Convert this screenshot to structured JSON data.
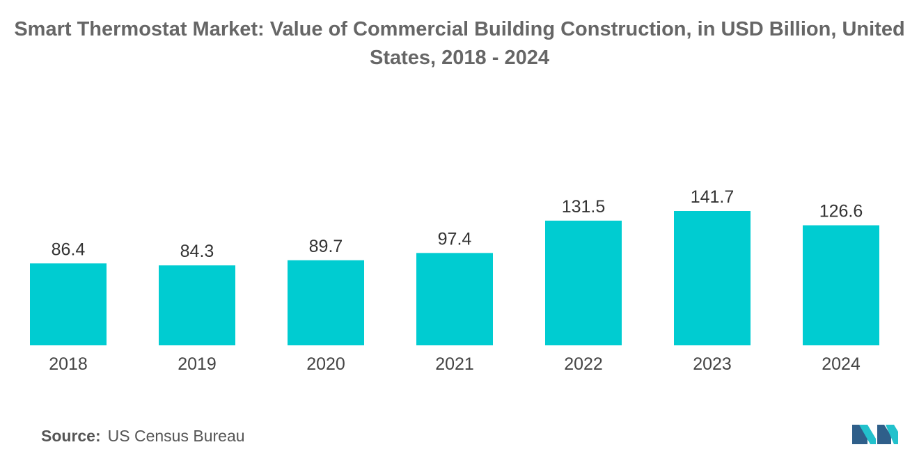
{
  "chart_data": {
    "type": "bar",
    "title": "Smart Thermostat Market: Value of Commercial Building Construction, in USD Billion, United States, 2018 - 2024",
    "categories": [
      "2018",
      "2019",
      "2020",
      "2021",
      "2022",
      "2023",
      "2024"
    ],
    "values": [
      86.4,
      84.3,
      89.7,
      97.4,
      131.5,
      141.7,
      126.6
    ],
    "value_labels": [
      "86.4",
      "84.3",
      "89.7",
      "97.4",
      "131.5",
      "141.7",
      "126.6"
    ],
    "xlabel": "",
    "ylabel": "",
    "ylim": [
      0,
      141.7
    ],
    "grid": false,
    "legend": "none",
    "bar_color": "#00CCD1"
  },
  "source": {
    "label": "Source:",
    "text": "US Census Bureau"
  },
  "colors": {
    "logo_dark": "#2F5F8A",
    "logo_light": "#22C1CC"
  }
}
